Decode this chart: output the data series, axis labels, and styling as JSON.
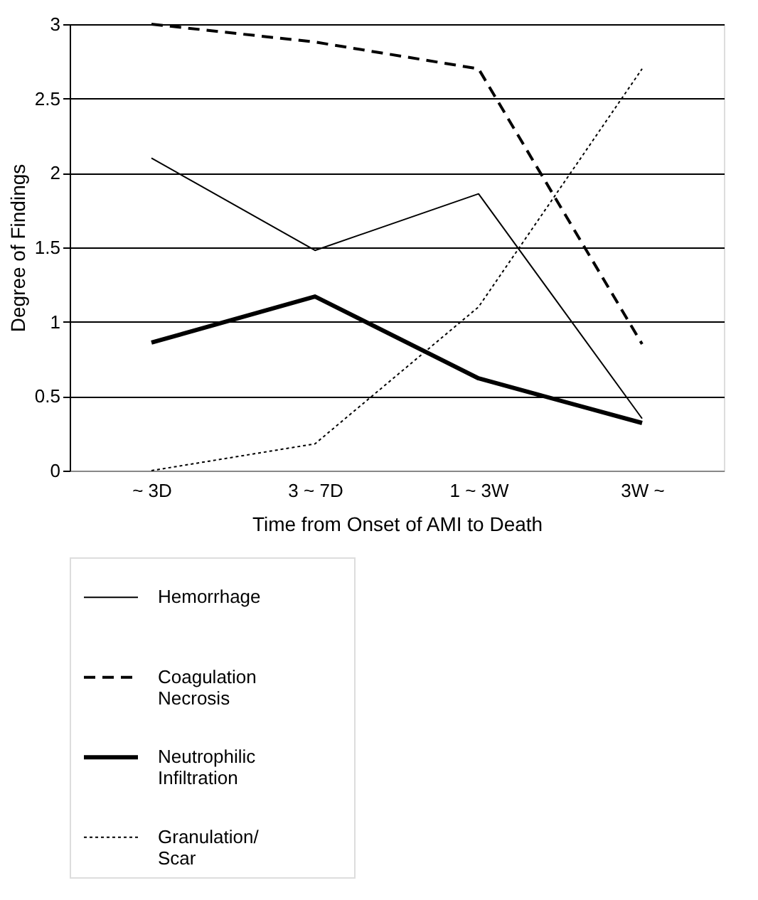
{
  "chart_data": {
    "type": "line",
    "xlabel": "Time from Onset of AMI to Death",
    "ylabel": "Degree of Findings",
    "categories": [
      "~ 3D",
      "3 ~ 7D",
      "1 ~ 3W",
      "3W ~"
    ],
    "series": [
      {
        "name": "Hemorrhage",
        "color": "#000000",
        "line_style": "solid",
        "values": [
          2.1,
          1.48,
          1.86,
          0.35
        ]
      },
      {
        "name": "Coagulation Necrosis",
        "color": "#000000",
        "line_style": "dashed",
        "values": [
          3.0,
          2.88,
          2.7,
          0.85
        ]
      },
      {
        "name": "Neutrophilic Infiltration",
        "color": "#000000",
        "line_style": "solid",
        "values": [
          0.86,
          1.17,
          0.62,
          0.32
        ]
      },
      {
        "name": "Granulation/ Scar",
        "color": "#000000",
        "line_style": "dotted",
        "values": [
          0.0,
          0.18,
          1.1,
          2.7
        ]
      }
    ],
    "ylim": [
      0,
      3
    ],
    "yticks": [
      0,
      0.5,
      1,
      1.5,
      2,
      2.5,
      3
    ],
    "grid": "y",
    "legend": "bottom",
    "marker": "none"
  }
}
